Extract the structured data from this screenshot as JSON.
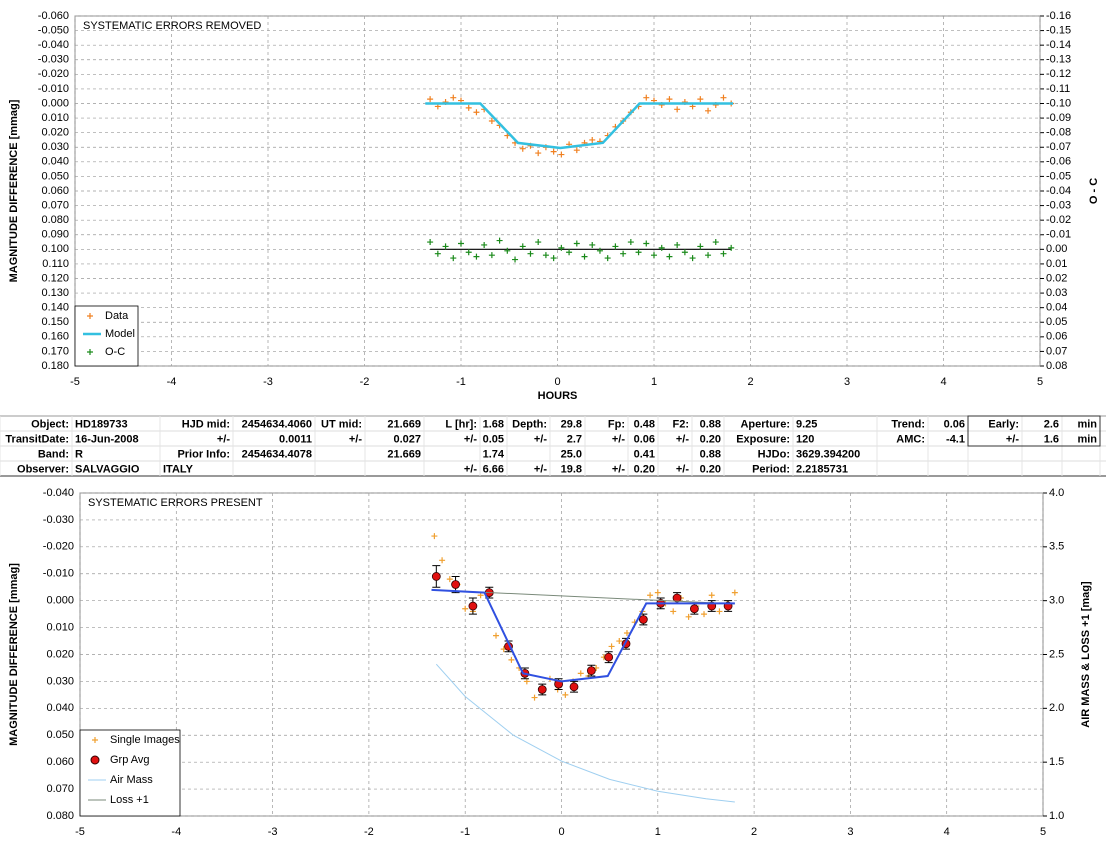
{
  "chart_data": [
    {
      "type": "scatter",
      "title": "SYSTEMATIC ERRORS REMOVED",
      "xlabel": "HOURS",
      "ylabel": "MAGNITUDE DIFFERENCE [mmag]",
      "y2label": "O - C",
      "xlim": [
        -5,
        5
      ],
      "xticks": [
        -5,
        -4,
        -3,
        -2,
        -1,
        0,
        1,
        2,
        3,
        4,
        5
      ],
      "ylim": [
        -0.06,
        0.18
      ],
      "y_inverted": true,
      "yticks": [
        {
          "value": -0.06,
          "label": "-0.060"
        },
        {
          "value": -0.05,
          "label": "-0.050"
        },
        {
          "value": -0.04,
          "label": "-0.040"
        },
        {
          "value": -0.03,
          "label": "-0.030"
        },
        {
          "value": -0.02,
          "label": "-0.020"
        },
        {
          "value": -0.01,
          "label": "-0.010"
        },
        {
          "value": 0,
          "label": "0.000"
        },
        {
          "value": 0.01,
          "label": "0.010"
        },
        {
          "value": 0.02,
          "label": "0.020"
        },
        {
          "value": 0.03,
          "label": "0.030"
        },
        {
          "value": 0.04,
          "label": "0.040"
        },
        {
          "value": 0.05,
          "label": "0.050"
        },
        {
          "value": 0.06,
          "label": "0.060"
        },
        {
          "value": 0.07,
          "label": "0.070"
        },
        {
          "value": 0.08,
          "label": "0.080"
        },
        {
          "value": 0.09,
          "label": "0.090"
        },
        {
          "value": 0.1,
          "label": "0.100"
        },
        {
          "value": 0.11,
          "label": "0.110"
        },
        {
          "value": 0.12,
          "label": "0.120"
        },
        {
          "value": 0.13,
          "label": "0.130"
        },
        {
          "value": 0.14,
          "label": "0.140"
        },
        {
          "value": 0.15,
          "label": "0.150"
        },
        {
          "value": 0.16,
          "label": "0.160"
        },
        {
          "value": 0.17,
          "label": "0.170"
        },
        {
          "value": 0.18,
          "label": "0.180"
        }
      ],
      "y2lim": [
        -0.16,
        0.08
      ],
      "y2_inverted": true,
      "y2ticks": [
        -0.16,
        -0.15,
        -0.14,
        -0.13,
        -0.12,
        -0.11,
        {
          "value": -0.1,
          "label": "-0.10"
        },
        -0.09,
        -0.08,
        -0.07,
        -0.06,
        -0.05,
        -0.04,
        -0.03,
        -0.02,
        -0.01,
        {
          "value": 0,
          "label": "0.00"
        },
        0.01,
        0.02,
        0.03,
        0.04,
        0.05,
        0.06,
        0.07,
        0.08
      ],
      "grid": true,
      "legend": "bottom left",
      "series": [
        {
          "name": "Data",
          "color": "#f08020",
          "marker": "+",
          "x": [
            -1.32,
            -1.24,
            -1.16,
            -1.08,
            -1.0,
            -0.92,
            -0.84,
            -0.76,
            -0.68,
            -0.6,
            -0.52,
            -0.44,
            -0.36,
            -0.28,
            -0.2,
            -0.12,
            -0.04,
            0.04,
            0.12,
            0.2,
            0.28,
            0.36,
            0.44,
            0.52,
            0.6,
            0.68,
            0.76,
            0.84,
            0.92,
            1.0,
            1.08,
            1.16,
            1.24,
            1.32,
            1.4,
            1.48,
            1.56,
            1.64,
            1.72,
            1.8
          ],
          "values": [
            -0.003,
            0.002,
            -0.001,
            -0.004,
            -0.002,
            0.003,
            0.006,
            0.004,
            0.012,
            0.015,
            0.022,
            0.027,
            0.031,
            0.029,
            0.034,
            0.03,
            0.033,
            0.035,
            0.028,
            0.032,
            0.027,
            0.025,
            0.026,
            0.022,
            0.016,
            0.012,
            0.006,
            0.002,
            -0.004,
            -0.002,
            0.001,
            -0.003,
            0.004,
            -0.001,
            0.002,
            -0.003,
            0.005,
            0.001,
            -0.004,
            0.0
          ]
        },
        {
          "name": "Model",
          "color": "#33c0e0",
          "line": 2.5,
          "x": [
            -1.37,
            -0.8,
            -0.41,
            0.03,
            0.47,
            0.85,
            1.82
          ],
          "values": [
            0.0,
            0.0,
            0.027,
            0.0305,
            0.027,
            0.0,
            0.0
          ]
        },
        {
          "name": "O-C",
          "color": "#1a8a1a",
          "marker": "+",
          "axis": "y2",
          "zero_line": true,
          "x": [
            -1.32,
            -1.24,
            -1.16,
            -1.08,
            -1.0,
            -0.92,
            -0.84,
            -0.76,
            -0.68,
            -0.6,
            -0.52,
            -0.44,
            -0.36,
            -0.28,
            -0.2,
            -0.12,
            -0.04,
            0.04,
            0.12,
            0.2,
            0.28,
            0.36,
            0.44,
            0.52,
            0.6,
            0.68,
            0.76,
            0.84,
            0.92,
            1.0,
            1.08,
            1.16,
            1.24,
            1.32,
            1.4,
            1.48,
            1.56,
            1.64,
            1.72,
            1.8
          ],
          "values": [
            -0.005,
            0.003,
            -0.002,
            0.006,
            -0.004,
            0.002,
            0.005,
            -0.003,
            0.004,
            -0.006,
            0.001,
            0.007,
            -0.002,
            0.003,
            -0.005,
            0.004,
            0.006,
            -0.001,
            0.002,
            -0.004,
            0.005,
            -0.003,
            0.001,
            0.006,
            -0.002,
            0.003,
            -0.005,
            0.002,
            -0.004,
            0.004,
            -0.001,
            0.005,
            -0.003,
            0.002,
            0.006,
            -0.002,
            0.004,
            -0.005,
            0.003,
            -0.001
          ]
        }
      ]
    },
    {
      "type": "scatter",
      "title": "SYSTEMATIC ERRORS PRESENT",
      "ylabel": "MAGNITUDE DIFFERENCE [mmag]",
      "y2label": "AIR MASS & LOSS +1 [mag]",
      "xlim": [
        -5,
        5
      ],
      "xticks": [
        -5,
        -4,
        -3,
        -2,
        -1,
        0,
        1,
        2,
        3,
        4,
        5
      ],
      "ylim": [
        -0.04,
        0.08
      ],
      "y_inverted": true,
      "yticks": [
        {
          "value": -0.04,
          "label": "-0.040"
        },
        {
          "value": -0.03,
          "label": "-0.030"
        },
        {
          "value": -0.02,
          "label": "-0.020"
        },
        {
          "value": -0.01,
          "label": "-0.010"
        },
        {
          "value": 0,
          "label": "0.000"
        },
        {
          "value": 0.01,
          "label": "0.010"
        },
        {
          "value": 0.02,
          "label": "0.020"
        },
        {
          "value": 0.03,
          "label": "0.030"
        },
        {
          "value": 0.04,
          "label": "0.040"
        },
        {
          "value": 0.05,
          "label": "0.050"
        },
        {
          "value": 0.06,
          "label": "0.060"
        },
        {
          "value": 0.07,
          "label": "0.070"
        },
        {
          "value": 0.08,
          "label": "0.080"
        }
      ],
      "y2lim": [
        1.0,
        4.0
      ],
      "y2_inverted": false,
      "y2ticks": [
        {
          "value": 1,
          "label": "1.0"
        },
        1.5,
        {
          "value": 2,
          "label": "2.0"
        },
        2.5,
        {
          "value": 3,
          "label": "3.0"
        },
        3.5,
        {
          "value": 4,
          "label": "4.0"
        }
      ],
      "grid": true,
      "legend": "bottom left",
      "series": [
        {
          "name": "Single Images",
          "color": "#f0a030",
          "marker": "+",
          "x": [
            -1.32,
            -1.24,
            -1.16,
            -1.08,
            -1.0,
            -0.92,
            -0.84,
            -0.76,
            -0.68,
            -0.6,
            -0.52,
            -0.44,
            -0.36,
            -0.28,
            -0.2,
            -0.12,
            -0.04,
            0.04,
            0.12,
            0.2,
            0.28,
            0.36,
            0.44,
            0.52,
            0.6,
            0.68,
            0.76,
            0.84,
            0.92,
            1.0,
            1.08,
            1.16,
            1.24,
            1.32,
            1.4,
            1.48,
            1.56,
            1.64,
            1.72,
            1.8
          ],
          "values": [
            -0.024,
            -0.015,
            -0.008,
            -0.006,
            0.003,
            0.004,
            -0.002,
            -0.003,
            0.013,
            0.018,
            0.022,
            0.025,
            0.03,
            0.036,
            0.034,
            0.029,
            0.033,
            0.035,
            0.03,
            0.027,
            0.028,
            0.025,
            0.021,
            0.017,
            0.015,
            0.012,
            0.008,
            0.004,
            -0.002,
            -0.003,
            0.001,
            0.004,
            -0.001,
            0.006,
            0.002,
            0.005,
            -0.002,
            0.004,
            0.001,
            -0.003
          ]
        },
        {
          "name": "Grp Avg",
          "color": "#e01010",
          "marker": "o",
          "x": [
            -1.3,
            -1.1,
            -0.92,
            -0.75,
            -0.55,
            -0.38,
            -0.2,
            -0.03,
            0.13,
            0.31,
            0.49,
            0.67,
            0.85,
            1.03,
            1.2,
            1.38,
            1.56,
            1.73
          ],
          "values": [
            -0.009,
            -0.006,
            0.002,
            -0.003,
            0.017,
            0.027,
            0.033,
            0.031,
            0.032,
            0.026,
            0.021,
            0.016,
            0.007,
            0.001,
            -0.001,
            0.003,
            0.002,
            0.002
          ],
          "errors": [
            0.004,
            0.003,
            0.003,
            0.002,
            0.002,
            0.002,
            0.002,
            0.002,
            0.002,
            0.002,
            0.002,
            0.002,
            0.002,
            0.002,
            0.002,
            0.002,
            0.002,
            0.002
          ]
        },
        {
          "name": "Air Mass",
          "color": "#9fcff0",
          "line": 1,
          "axis": "y2",
          "x": [
            -1.3,
            -1.0,
            -0.5,
            0.0,
            0.5,
            1.0,
            1.5,
            1.8
          ],
          "values": [
            2.41,
            2.11,
            1.75,
            1.51,
            1.34,
            1.23,
            1.16,
            1.13
          ]
        },
        {
          "name": "Loss +1",
          "color": "#7a8a7a",
          "line": 1,
          "axis": "y2",
          "x": [
            -1.35,
            1.8
          ],
          "values": [
            3.1,
            2.97
          ]
        },
        {
          "color": "#3050e0",
          "line": 2,
          "x": [
            -1.35,
            -0.8,
            -0.4,
            0.0,
            0.48,
            0.88,
            1.8
          ],
          "values": [
            -0.004,
            -0.003,
            0.027,
            0.03,
            0.028,
            0.001,
            0.001
          ]
        }
      ]
    }
  ],
  "table": {
    "rows": [
      [
        "Object:",
        "HD189733",
        "HJD mid:",
        "2454634.4060",
        "UT mid:",
        "21.669",
        "L [hr]:",
        "1.68",
        "Depth:",
        "29.8",
        "Fp:",
        "0.48",
        "F2:",
        "0.88",
        "Aperture:",
        "9.25",
        "Trend:",
        "0.06",
        "Early:",
        "2.6",
        "min"
      ],
      [
        "TransitDate:",
        "16-Jun-2008",
        "+/-",
        "0.0011",
        "+/-",
        "0.027",
        "+/-",
        "0.05",
        "+/-",
        "2.7",
        "+/-",
        "0.06",
        "+/-",
        "0.20",
        "Exposure:",
        "120",
        "AMC:",
        "-4.1",
        "+/-",
        "1.6",
        "min"
      ],
      [
        "Band:",
        "R",
        "Prior Info:",
        "2454634.4078",
        null,
        "21.669",
        null,
        "1.74",
        null,
        "25.0",
        null,
        "0.41",
        null,
        "0.88",
        "HJDo:",
        "3629.394200",
        null,
        null,
        null,
        null,
        null
      ],
      [
        "Observer:",
        "SALVAGGIO",
        "ITALY",
        null,
        null,
        null,
        "+/-",
        "6.66",
        "+/-",
        "19.8",
        "+/-",
        "0.20",
        "+/-",
        "0.20",
        "Period:",
        "2.2185731",
        null,
        null,
        null,
        null,
        null
      ]
    ]
  }
}
